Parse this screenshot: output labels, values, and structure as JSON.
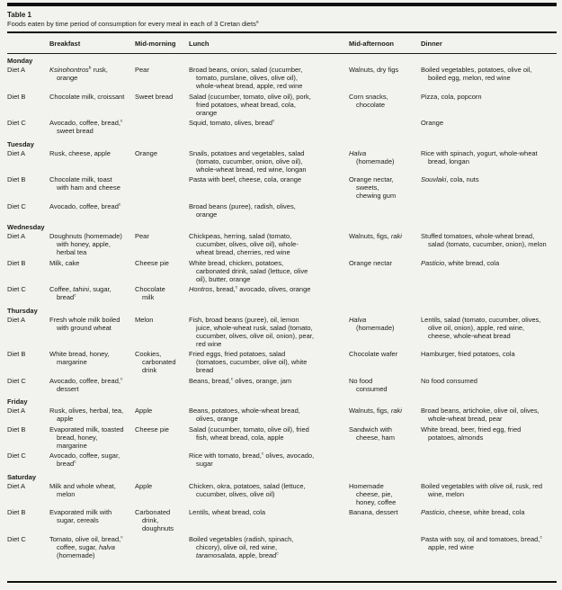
{
  "page": {
    "background_color": "#f2f2ef",
    "text_color": "#1b1b1b",
    "rule_color": "#101010"
  },
  "table": {
    "label": "Table 1",
    "caption": "Foods eaten by time period of consumption for every meal in each of 3 Cretan diets",
    "caption_footnote_marker": "a",
    "columns": [
      "",
      "Breakfast",
      "Mid-morning",
      "Lunch",
      "Mid-afternoon",
      "Dinner"
    ],
    "days": [
      {
        "day": "Monday",
        "rows": [
          {
            "diet": "Diet A",
            "breakfast": "*Ksinohontros*^b^ rusk, orange",
            "mid_morning": "Pear",
            "lunch": "Broad beans, onion, salad (cucumber, tomato, purslane, olives, olive oil), whole-wheat bread, apple, red wine",
            "mid_afternoon": "Walnuts, dry figs",
            "dinner": "Boiled vegetables, potatoes, olive oil, boiled egg, melon, red wine"
          },
          {
            "diet": "Diet B",
            "breakfast": "Chocolate milk, croissant",
            "mid_morning": "Sweet bread",
            "lunch": "Salad (cucumber, tomato, olive oil), pork, fried potatoes, wheat bread, cola, orange",
            "mid_afternoon": "Corn snacks, chocolate",
            "dinner": "Pizza, cola, popcorn"
          },
          {
            "diet": "Diet C",
            "breakfast": "Avocado, coffee, bread,^c^ sweet bread",
            "mid_morning": "",
            "lunch": "Squid, tomato, olives, bread^c^",
            "mid_afternoon": "",
            "dinner": "Orange"
          }
        ]
      },
      {
        "day": "Tuesday",
        "rows": [
          {
            "diet": "Diet A",
            "breakfast": "Rusk, cheese, apple",
            "mid_morning": "Orange",
            "lunch": "Snails, potatoes and vegetables, salad (tomato, cucumber, onion, olive oil), whole-wheat bread, red wine, longan",
            "mid_afternoon": "*Halva* (homemade)",
            "dinner": "Rice with spinach, yogurt, whole-wheat bread, longan"
          },
          {
            "diet": "Diet B",
            "breakfast": "Chocolate milk, toast with ham and cheese",
            "mid_morning": "",
            "lunch": "Pasta with beef, cheese, cola, orange",
            "mid_afternoon": "Orange nectar, sweets, chewing gum",
            "dinner": "*Souvlaki*, cola, nuts"
          },
          {
            "diet": "Diet C",
            "breakfast": "Avocado, coffee, bread^c^",
            "mid_morning": "",
            "lunch": "Broad beans (puree), radish, olives, orange",
            "mid_afternoon": "",
            "dinner": ""
          }
        ]
      },
      {
        "day": "Wednesday",
        "rows": [
          {
            "diet": "Diet A",
            "breakfast": "Doughnuts (homemade) with honey, apple, herbal tea",
            "mid_morning": "Pear",
            "lunch": "Chickpeas, herring, salad (tomato, cucumber, olives, olive oil), whole-wheat bread, cherries, red wine",
            "mid_afternoon": "Walnuts, figs, *raki*",
            "dinner": "Stuffed tomatoes, whole-wheat bread, salad (tomato, cucumber, onion), melon"
          },
          {
            "diet": "Diet B",
            "breakfast": "Milk, cake",
            "mid_morning": "Cheese pie",
            "lunch": "White bread, chicken, potatoes, carbonated drink, salad (lettuce, olive oil), butter, orange",
            "mid_afternoon": "Orange nectar",
            "dinner": "*Pasticio*, white bread, cola"
          },
          {
            "diet": "Diet C",
            "breakfast": "Coffee, *tahini*, sugar, bread^c^",
            "mid_morning": "Chocolate milk",
            "lunch": "*Hontros*, bread,^c^ avocado, olives, orange",
            "mid_afternoon": "",
            "dinner": ""
          }
        ]
      },
      {
        "day": "Thursday",
        "rows": [
          {
            "diet": "Diet A",
            "breakfast": "Fresh whole milk boiled with ground wheat",
            "mid_morning": "Melon",
            "lunch": "Fish, broad beans (puree), oil, lemon juice, whole-wheat rusk, salad (tomato, cucumber, olives, olive oil, onion), pear, red wine",
            "mid_afternoon": "*Halva* (homemade)",
            "dinner": "Lentils, salad (tomato, cucumber, olives, olive oil, onion), apple, red wine, cheese, whole-wheat bread"
          },
          {
            "diet": "Diet B",
            "breakfast": "White bread, honey, margarine",
            "mid_morning": "Cookies, carbonated drink",
            "lunch": "Fried eggs, fried potatoes, salad (tomatoes, cucumber, olive oil), white bread",
            "mid_afternoon": "Chocolate wafer",
            "dinner": "Hamburger, fried potatoes, cola"
          },
          {
            "diet": "Diet C",
            "breakfast": "Avocado, coffee, bread,^c^ dessert",
            "mid_morning": "",
            "lunch": "Beans, bread,^c^ olives, orange, jam",
            "mid_afternoon": "No food consumed",
            "dinner": "No food consumed"
          }
        ]
      },
      {
        "day": "Friday",
        "rows": [
          {
            "diet": "Diet A",
            "breakfast": "Rusk, olives, herbal, tea, apple",
            "mid_morning": "Apple",
            "lunch": "Beans, potatoes, whole-wheat bread, olives, orange",
            "mid_afternoon": "Walnuts, figs, *raki*",
            "dinner": "Broad beans, artichoke, olive oil, olives, whole-wheat bread, pear"
          },
          {
            "diet": "Diet B",
            "breakfast": "Evaporated milk, toasted bread, honey, margarine",
            "mid_morning": "Cheese pie",
            "lunch": "Salad (cucumber, tomato, olive oil), fried fish, wheat bread, cola, apple",
            "mid_afternoon": "Sandwich with cheese, ham",
            "dinner": "White bread, beer, fried egg, fried potatoes, almonds"
          },
          {
            "diet": "Diet C",
            "breakfast": "Avocado, coffee, sugar, bread^c^",
            "mid_morning": "",
            "lunch": "Rice with tomato, bread,^c^ olives, avocado, sugar",
            "mid_afternoon": "",
            "dinner": ""
          }
        ]
      },
      {
        "day": "Saturday",
        "rows": [
          {
            "diet": "Diet A",
            "breakfast": "Milk and whole wheat, melon",
            "mid_morning": "Apple",
            "lunch": "Chicken, okra, potatoes, salad (lettuce, cucumber, olives, olive oil)",
            "mid_afternoon": "Homemade cheese, pie, honey, coffee",
            "dinner": "Boiled vegetables with olive oil, rusk, red wine, melon"
          },
          {
            "diet": "Diet B",
            "breakfast": "Evaporated milk with sugar, cereals",
            "mid_morning": "Carbonated drink, doughnuts",
            "lunch": "Lentils, wheat bread, cola",
            "mid_afternoon": "Banana, dessert",
            "dinner": "*Pasticio*, cheese, white bread, cola"
          },
          {
            "diet": "Diet C",
            "breakfast": "Tomato, olive oil, bread,^c^ coffee, sugar, *halva* (homemade)",
            "mid_morning": "",
            "lunch": "Boiled vegetables (radish, spinach, chicory), olive oil, red wine, *taramosalata*, apple, bread^c^",
            "mid_afternoon": "",
            "dinner": "Pasta with soy, oil and tomatoes, bread,^c^ apple, red wine"
          }
        ]
      }
    ]
  }
}
